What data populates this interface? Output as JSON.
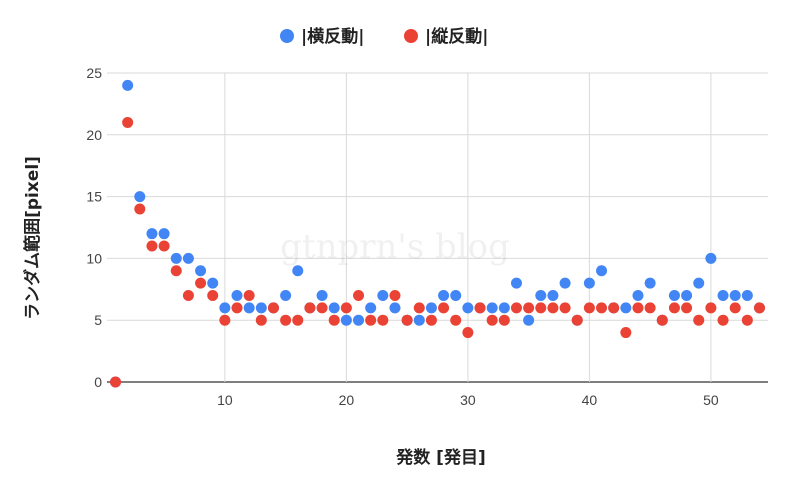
{
  "chart_data": {
    "type": "scatter",
    "title": "",
    "xlabel": "発数 [発目]",
    "ylabel": "ランダム範囲[pixel]",
    "xlim": [
      0.3,
      54.7
    ],
    "ylim": [
      0,
      25
    ],
    "x_ticks": [
      10,
      20,
      30,
      40,
      50
    ],
    "y_ticks": [
      0,
      5,
      10,
      15,
      20,
      25
    ],
    "grid": true,
    "legend_position": "top-center",
    "watermark": "gtnprn's blog",
    "series": [
      {
        "name": "|横反動|",
        "color": "#4285f4",
        "x": [
          1,
          2,
          3,
          4,
          5,
          6,
          7,
          8,
          9,
          10,
          11,
          12,
          13,
          14,
          15,
          16,
          17,
          18,
          19,
          20,
          21,
          22,
          23,
          24,
          25,
          26,
          27,
          28,
          29,
          30,
          31,
          32,
          33,
          34,
          35,
          36,
          37,
          38,
          39,
          40,
          41,
          42,
          43,
          44,
          45,
          46,
          47,
          48,
          49,
          50,
          51,
          52,
          53,
          54
        ],
        "values": [
          0,
          24,
          15,
          12,
          12,
          10,
          10,
          9,
          8,
          6,
          7,
          6,
          6,
          6,
          7,
          9,
          6,
          7,
          6,
          5,
          5,
          6,
          7,
          6,
          5,
          5,
          6,
          7,
          7,
          6,
          6,
          6,
          6,
          8,
          5,
          7,
          7,
          8,
          5,
          8,
          9,
          6,
          6,
          7,
          8,
          5,
          7,
          7,
          8,
          10,
          7,
          7,
          7,
          6
        ]
      },
      {
        "name": "|縦反動|",
        "color": "#ea4335",
        "x": [
          1,
          2,
          3,
          4,
          5,
          6,
          7,
          8,
          9,
          10,
          11,
          12,
          13,
          14,
          15,
          16,
          17,
          18,
          19,
          20,
          21,
          22,
          23,
          24,
          25,
          26,
          27,
          28,
          29,
          30,
          31,
          32,
          33,
          34,
          35,
          36,
          37,
          38,
          39,
          40,
          41,
          42,
          43,
          44,
          45,
          46,
          47,
          48,
          49,
          50,
          51,
          52,
          53,
          54
        ],
        "values": [
          0,
          21,
          14,
          11,
          11,
          9,
          7,
          8,
          7,
          5,
          6,
          7,
          5,
          6,
          5,
          5,
          6,
          6,
          5,
          6,
          7,
          5,
          5,
          7,
          5,
          6,
          5,
          6,
          5,
          4,
          6,
          5,
          5,
          6,
          6,
          6,
          6,
          6,
          5,
          6,
          6,
          6,
          4,
          6,
          6,
          5,
          6,
          6,
          5,
          6,
          5,
          6,
          5,
          6
        ]
      }
    ]
  }
}
